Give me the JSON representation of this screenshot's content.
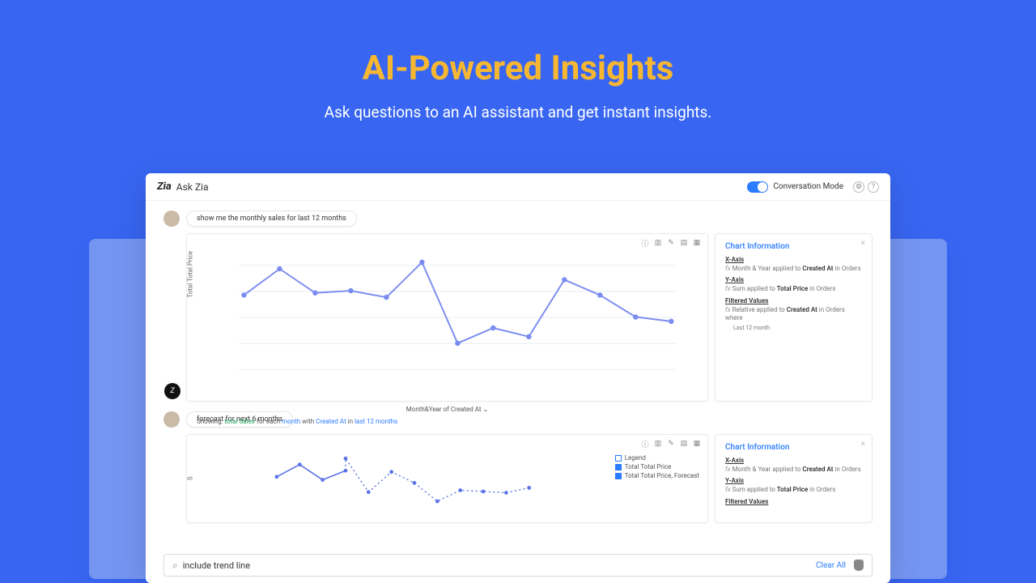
{
  "hero": {
    "title": "AI-Powered Insights",
    "subtitle": "Ask questions to an AI assistant and get instant insights.",
    "title_color": "#f7b731",
    "bg_color": "#3866f2"
  },
  "app": {
    "logo_text": "Zia",
    "title": "Ask Zia",
    "mode_label": "Conversation Mode"
  },
  "messages": [
    {
      "role": "user",
      "text": "show me the monthly sales for last 12 months"
    },
    {
      "role": "user",
      "text": "forecast for next 6 months"
    }
  ],
  "chart1": {
    "type": "line",
    "y_label": "Total Total Price",
    "x_label": "Month&Year of Created At",
    "caption_parts": {
      "prefix": "Showing:",
      "term1": "total Sales",
      "mid1": " for each ",
      "term2": "month",
      "mid2": " with ",
      "term3": "Created At",
      "mid3": " in ",
      "term4": "last 12 months"
    },
    "line_color": "#7a8cf0",
    "grid_color": "#eef1f7",
    "y_values": [
      68,
      92,
      70,
      72,
      66,
      98,
      24,
      38,
      30,
      82,
      68,
      48,
      44
    ],
    "ylim": [
      0,
      100
    ]
  },
  "chart2": {
    "type": "line_forecast",
    "y_label": "S",
    "line_color": "#5b73e8",
    "forecast_style": "dotted",
    "actual_values": [
      60,
      80,
      55,
      70
    ],
    "forecast_values": [
      90,
      35,
      68,
      50,
      20,
      38,
      36,
      34,
      42
    ],
    "legend": {
      "title": "Legend",
      "series1": "Total Total Price",
      "series2": "Total Total Price, Forecast"
    }
  },
  "info1": {
    "title": "Chart Information",
    "x_axis": {
      "label": "X-Axis",
      "fn": "Month & Year",
      "mid": " applied to ",
      "field": "Created At",
      "suffix": " in Orders"
    },
    "y_axis": {
      "label": "Y-Axis",
      "fn": "Sum",
      "mid": " applied to ",
      "field": "Total Price",
      "suffix": " in Orders"
    },
    "filter": {
      "label": "Filtered Values",
      "fn": "Relative",
      "mid": " applied to ",
      "field": "Created At",
      "suffix": " in Orders where",
      "sub": "Last 12 month"
    }
  },
  "info2": {
    "title": "Chart Information",
    "x_axis": {
      "label": "X-Axis",
      "fn": "Month & Year",
      "mid": " applied to ",
      "field": "Created At",
      "suffix": " in Orders"
    },
    "y_axis": {
      "label": "Y-Axis",
      "fn": "Sum",
      "mid": " applied to ",
      "field": "Total Price",
      "suffix": " in Orders"
    },
    "filter": {
      "label": "Filtered Values"
    }
  },
  "search": {
    "value": "include trend line",
    "clear_label": "Clear All"
  }
}
